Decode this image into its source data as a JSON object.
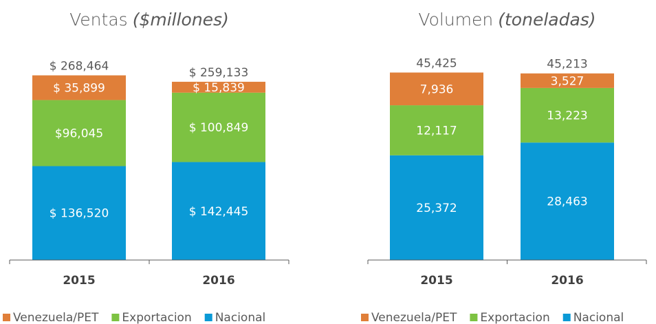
{
  "chart_data": [
    {
      "type": "stacked_bar",
      "title": "Ventas",
      "unit": "($millones)",
      "categories": [
        "2015",
        "2016"
      ],
      "series": [
        {
          "name": "Nacional",
          "color": "#0b9ad6",
          "values": [
            136520,
            142445
          ],
          "value_labels": [
            "$ 136,520",
            "$ 142,445"
          ]
        },
        {
          "name": "Exportacion",
          "color": "#7dc242",
          "values": [
            96045,
            100849
          ],
          "value_labels": [
            "$96,045",
            "$ 100,849"
          ]
        },
        {
          "name": "Venezuela/PET",
          "color": "#e07f39",
          "values": [
            35899,
            15839
          ],
          "value_labels": [
            "$ 35,899",
            "$ 15,839"
          ]
        }
      ],
      "totals": [
        268464,
        259133
      ],
      "total_labels": [
        "$ 268,464",
        "$ 259,133"
      ],
      "ylim": [
        0,
        300000
      ]
    },
    {
      "type": "stacked_bar",
      "title": "Volumen",
      "unit": "(toneladas)",
      "categories": [
        "2015",
        "2016"
      ],
      "series": [
        {
          "name": "Nacional",
          "color": "#0b9ad6",
          "values": [
            25372,
            28463
          ],
          "value_labels": [
            "25,372",
            "28,463"
          ]
        },
        {
          "name": "Exportacion",
          "color": "#7dc242",
          "values": [
            12117,
            13223
          ],
          "value_labels": [
            "12,117",
            "13,223"
          ]
        },
        {
          "name": "Venezuela/PET",
          "color": "#e07f39",
          "values": [
            7936,
            3527
          ],
          "value_labels": [
            "7,936",
            "3,527"
          ]
        }
      ],
      "totals": [
        45425,
        45213
      ],
      "total_labels": [
        "45,425",
        "45,213"
      ],
      "ylim": [
        0,
        50000
      ]
    }
  ]
}
